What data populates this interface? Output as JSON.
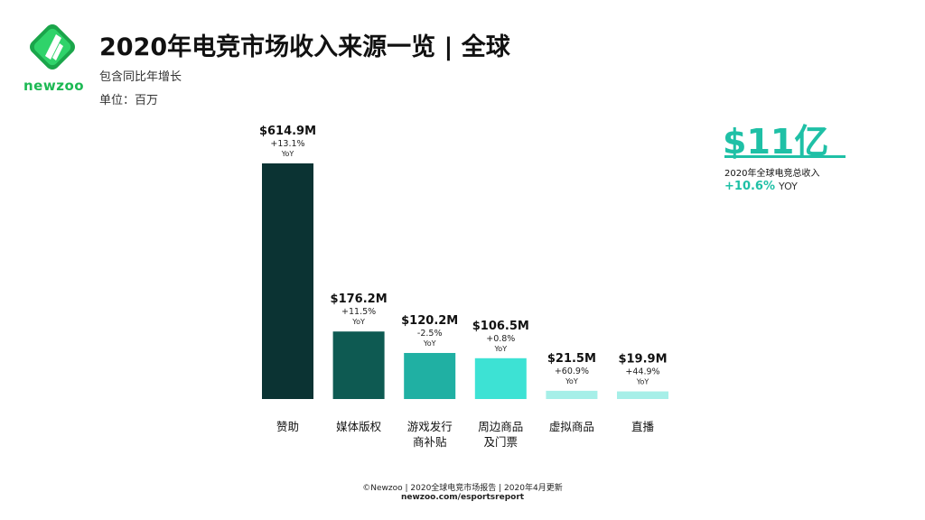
{
  "brand": {
    "logo_text": "newzoo"
  },
  "header": {
    "title": "2020年电竞市场收入来源一览 | 全球",
    "subtitle": "包含同比年增长",
    "unit": "单位：百万"
  },
  "kpi": {
    "value": "$11亿",
    "label": "2020年全球电竞总收入",
    "growth": "+10.6%",
    "growth_suffix": "YOY"
  },
  "footer": {
    "copyright": "©Newzoo | 2020全球电竞市场报告 | 2020年4月更新",
    "url": "newzoo.com/esportsreport"
  },
  "chart_data": {
    "type": "bar",
    "categories": [
      "赞助",
      "媒体版权",
      "游戏发行商补贴",
      "周边商品及门票",
      "虚拟商品",
      "直播"
    ],
    "category_lines": [
      [
        "赞助"
      ],
      [
        "媒体版权"
      ],
      [
        "游戏发行",
        "商补贴"
      ],
      [
        "周边商品",
        "及门票"
      ],
      [
        "虚拟商品"
      ],
      [
        "直播"
      ]
    ],
    "values": [
      614.9,
      176.2,
      120.2,
      106.5,
      21.5,
      19.9
    ],
    "value_labels": [
      "$614.9M",
      "$176.2M",
      "$120.2M",
      "$106.5M",
      "$21.5M",
      "$19.9M"
    ],
    "growth_labels": [
      "+13.1%",
      "+11.5%",
      "-2.5%",
      "+0.8%",
      "+60.9%",
      "+44.9%"
    ],
    "yoy_label": "YoY",
    "colors": [
      "#0b3333",
      "#0e5a52",
      "#20b0a3",
      "#3de2d4",
      "#a6efe8",
      "#a6efe8"
    ],
    "ylim": [
      0,
      614.9
    ],
    "title": "",
    "xlabel": "",
    "ylabel": ""
  }
}
